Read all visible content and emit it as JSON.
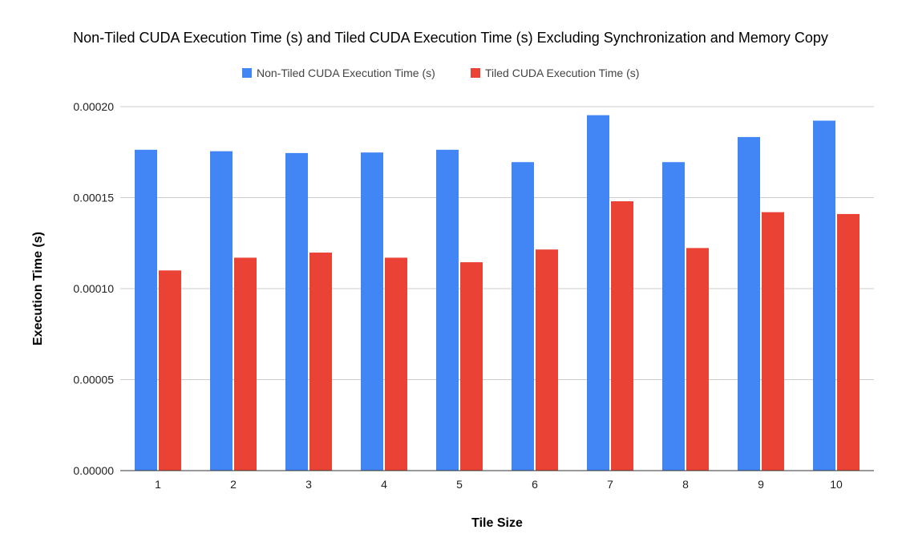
{
  "chart_data": {
    "type": "bar",
    "title": "Non-Tiled CUDA Execution Time (s) and Tiled CUDA Execution Time (s) Excluding Synchronization and Memory Copy",
    "xlabel": "Tile Size",
    "ylabel": "Execution Time (s)",
    "categories": [
      "1",
      "2",
      "3",
      "4",
      "5",
      "6",
      "7",
      "8",
      "9",
      "10"
    ],
    "series": [
      {
        "name": "Non-Tiled CUDA Execution Time (s)",
        "color": "#4285F4",
        "values": [
          0.0001763,
          0.0001755,
          0.0001745,
          0.0001748,
          0.0001763,
          0.0001695,
          0.0001953,
          0.0001695,
          0.0001833,
          0.0001923
        ]
      },
      {
        "name": "Tiled CUDA Execution Time (s)",
        "color": "#EA4335",
        "values": [
          0.00011,
          0.000117,
          0.0001198,
          0.000117,
          0.0001145,
          0.0001215,
          0.000148,
          0.0001223,
          0.000142,
          0.000141
        ]
      }
    ],
    "ylim": [
      0,
      0.0002
    ],
    "yticks": [
      "0.00000",
      "0.00005",
      "0.00010",
      "0.00015",
      "0.00020"
    ],
    "grid": true,
    "legend_position": "top"
  }
}
